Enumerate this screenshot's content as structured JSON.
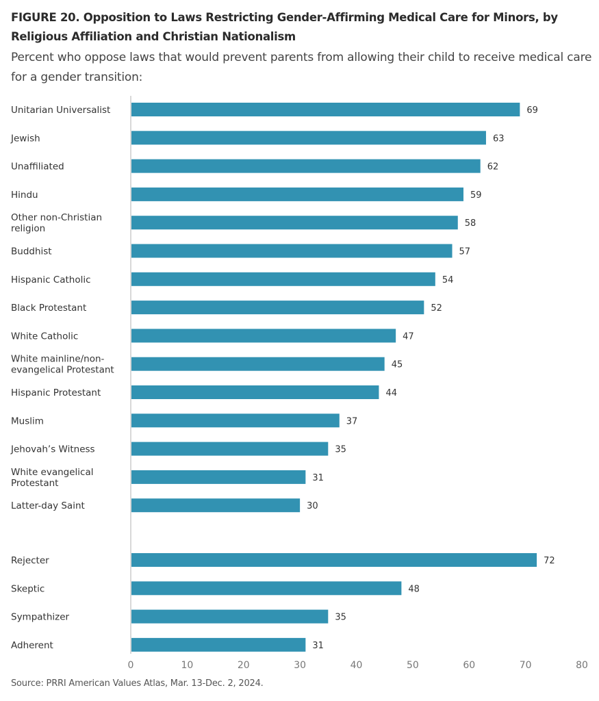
{
  "chart_data": {
    "type": "bar",
    "orientation": "horizontal",
    "title": "FIGURE 20. Opposition to Laws Restricting Gender-Affirming Medical Care for Minors, by Religious Affiliation and Christian Nationalism",
    "subtitle": "Percent who oppose laws that would prevent parents from allowing their child to receive medical care for a gender transition:",
    "source": "Source: PRRI American Values Atlas, Mar. 13-Dec. 2, 2024.",
    "bar_color": "#3292b2",
    "xlim": [
      0,
      80
    ],
    "xticks": [
      "0",
      "10",
      "20",
      "30",
      "40",
      "50",
      "60",
      "70",
      "80"
    ],
    "grid": false,
    "groups": [
      {
        "categories": [
          "Unitarian Universalist",
          "Jewish",
          "Unaffiliated",
          "Hindu",
          "Other non-Christian\nreligion",
          "Buddhist",
          "Hispanic Catholic",
          "Black Protestant",
          "White Catholic",
          "White mainline/non-\nevangelical Protestant",
          "Hispanic Protestant",
          "Muslim",
          "Jehovah’s Witness",
          "White evangelical\nProtestant",
          "Latter-day Saint"
        ],
        "values": [
          69,
          63,
          62,
          59,
          58,
          57,
          54,
          52,
          47,
          45,
          44,
          37,
          35,
          31,
          30
        ]
      },
      {
        "categories": [
          "Rejecter",
          "Skeptic",
          "Sympathizer",
          "Adherent"
        ],
        "values": [
          72,
          48,
          35,
          31
        ]
      }
    ]
  }
}
